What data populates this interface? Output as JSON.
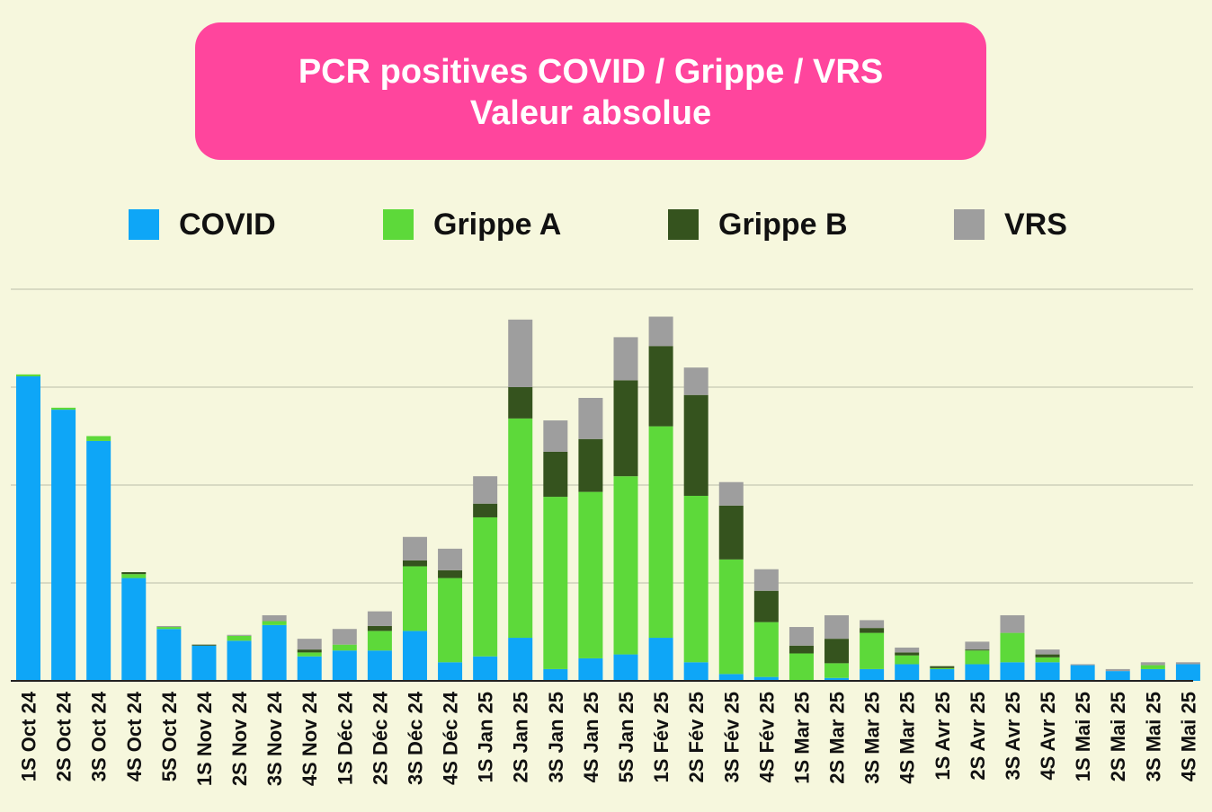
{
  "title": {
    "line1": "PCR positives COVID / Grippe / VRS",
    "line2": "Valeur absolue"
  },
  "legend": [
    {
      "label": "COVID",
      "color": "#0ea6f7"
    },
    {
      "label": "Grippe A",
      "color": "#5dd93a"
    },
    {
      "label": "Grippe B",
      "color": "#35531e"
    },
    {
      "label": "VRS",
      "color": "#9e9e9e"
    }
  ],
  "chart_data": {
    "type": "bar",
    "stacked": true,
    "title": "PCR positives COVID / Grippe / VRS — Valeur absolue",
    "xlabel": "",
    "ylabel": "",
    "ylim": [
      0,
      400
    ],
    "grid": true,
    "legend_position": "top",
    "categories": [
      "1S Oct 24",
      "2S Oct 24",
      "3S Oct 24",
      "4S Oct 24",
      "5S Oct 24",
      "1S Nov 24",
      "2S Nov 24",
      "3S Nov 24",
      "4S Nov 24",
      "1S Déc 24",
      "2S Déc 24",
      "3S Déc 24",
      "4S Déc 24",
      "1S Jan 25",
      "2S Jan 25",
      "3S Jan 25",
      "4S Jan 25",
      "5S Jan 25",
      "1S Fév 25",
      "2S Fév 25",
      "3S Fév 25",
      "4S Fév 25",
      "1S Mar 25",
      "2S Mar 25",
      "3S Mar 25",
      "4S Mar 25",
      "1S Avr 25",
      "2S Avr 25",
      "3S Avr 25",
      "4S Avr 25",
      "1S Mai 25",
      "2S Mai 25",
      "3S Mai 25",
      "4S Mai 25"
    ],
    "series": [
      {
        "name": "COVID",
        "color": "#0ea6f7",
        "values": [
          311,
          277,
          245,
          105,
          53,
          36,
          41,
          57,
          25,
          31,
          31,
          51,
          19,
          25,
          44,
          12,
          23,
          27,
          44,
          19,
          7,
          4,
          0,
          3,
          12,
          17,
          12,
          17,
          19,
          19,
          16,
          10,
          12,
          17
        ]
      },
      {
        "name": "Grippe A",
        "color": "#5dd93a",
        "values": [
          2,
          2,
          5,
          4,
          2,
          0,
          5,
          4,
          4,
          6,
          20,
          66,
          86,
          142,
          224,
          176,
          170,
          182,
          216,
          170,
          117,
          56,
          28,
          15,
          37,
          9,
          1,
          14,
          30,
          5,
          0,
          0,
          4,
          0
        ]
      },
      {
        "name": "Grippe B",
        "color": "#35531e",
        "values": [
          0,
          0,
          0,
          2,
          0,
          1,
          0,
          0,
          3,
          0,
          5,
          6,
          8,
          14,
          32,
          46,
          54,
          98,
          82,
          103,
          55,
          32,
          8,
          25,
          5,
          3,
          2,
          1,
          0,
          3,
          0,
          0,
          0,
          0
        ]
      },
      {
        "name": "VRS",
        "color": "#9e9e9e",
        "values": [
          0,
          0,
          0,
          0,
          1,
          0,
          1,
          6,
          11,
          16,
          15,
          24,
          22,
          28,
          69,
          32,
          42,
          44,
          30,
          28,
          24,
          22,
          19,
          24,
          8,
          5,
          0,
          8,
          18,
          5,
          1,
          2,
          3,
          2
        ]
      }
    ]
  }
}
